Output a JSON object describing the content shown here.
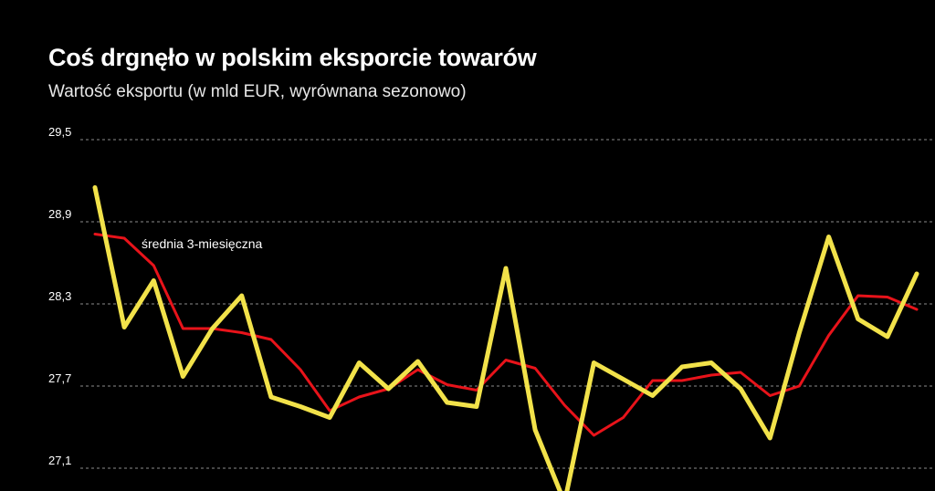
{
  "chart_data": {
    "type": "line",
    "title": "Coś drgnęło w polskim eksporcie towarów",
    "subtitle": "Wartość eksportu (w mld EUR, wyrównana sezonowo)",
    "xlabel": "",
    "ylabel": "",
    "yticks": [
      "29,5",
      "28,9",
      "28,3",
      "27,7",
      "27,1"
    ],
    "ytick_values": [
      29.5,
      28.9,
      28.3,
      27.7,
      27.1
    ],
    "ylim": [
      27.1,
      29.5
    ],
    "grid": true,
    "annotations": [
      {
        "text": "średnia 3-miesięczna",
        "series": "rolling_average"
      }
    ],
    "series": [
      {
        "id": "monthly",
        "color": "#f2e24a",
        "values": [
          29.15,
          28.13,
          28.47,
          27.77,
          28.12,
          28.36,
          27.62,
          27.55,
          27.47,
          27.87,
          27.68,
          27.88,
          27.58,
          27.55,
          28.56,
          27.38,
          26.85,
          27.87,
          27.75,
          27.63,
          27.84,
          27.87,
          27.68,
          27.32,
          28.09,
          28.79,
          28.19,
          28.06,
          28.52
        ]
      },
      {
        "id": "rolling_average",
        "color": "#e8131a",
        "values": [
          28.81,
          28.78,
          28.58,
          28.12,
          28.12,
          28.09,
          28.04,
          27.82,
          27.52,
          27.62,
          27.68,
          27.82,
          27.71,
          27.67,
          27.89,
          27.83,
          27.56,
          27.34,
          27.47,
          27.74,
          27.74,
          27.78,
          27.8,
          27.63,
          27.7,
          28.07,
          28.36,
          28.35,
          28.26
        ]
      }
    ]
  },
  "colors": {
    "background": "#000000",
    "text": "#ffffff",
    "grid": "#8c8c8c"
  }
}
